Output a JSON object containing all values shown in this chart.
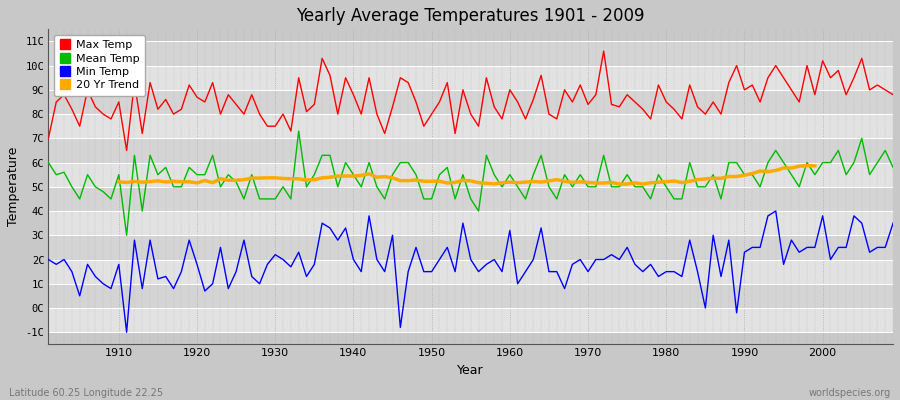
{
  "title": "Yearly Average Temperatures 1901 - 2009",
  "xlabel": "Year",
  "ylabel": "Temperature",
  "subtitle_left": "Latitude 60.25 Longitude 22.25",
  "subtitle_right": "worldspecies.org",
  "ylim": [
    -1.5,
    11.5
  ],
  "yticks": [
    -1,
    0,
    1,
    2,
    3,
    4,
    5,
    6,
    7,
    8,
    9,
    10,
    11
  ],
  "ytick_labels": [
    "-1C",
    "0C",
    "1C",
    "2C",
    "3C",
    "4C",
    "5C",
    "6C",
    "7C",
    "8C",
    "9C",
    "10C",
    "11C"
  ],
  "xlim": [
    1901,
    2009
  ],
  "start_year": 1901,
  "end_year": 2009,
  "colors": {
    "max": "#ff0000",
    "mean": "#00bb00",
    "min": "#0000ff",
    "trend": "#ffaa00",
    "fig_bg": "#d0d0d0",
    "plot_bg_dark": "#c8c8c8",
    "plot_bg_light": "#e0e0e0",
    "grid_v": "#aaaaaa",
    "grid_h": "#ffffff"
  },
  "legend_labels": [
    "Max Temp",
    "Mean Temp",
    "Min Temp",
    "20 Yr Trend"
  ],
  "max_temp": [
    7.0,
    8.5,
    8.8,
    8.2,
    7.5,
    9.0,
    8.3,
    8.0,
    7.8,
    8.5,
    6.5,
    9.3,
    7.2,
    9.3,
    8.2,
    8.6,
    8.0,
    8.2,
    9.2,
    8.7,
    8.5,
    9.3,
    8.0,
    8.8,
    8.4,
    8.0,
    8.8,
    8.0,
    7.5,
    7.5,
    8.0,
    7.3,
    9.5,
    8.1,
    8.4,
    10.3,
    9.6,
    8.0,
    9.5,
    8.8,
    8.0,
    9.5,
    8.0,
    7.2,
    8.3,
    9.5,
    9.3,
    8.5,
    7.5,
    8.0,
    8.5,
    9.3,
    7.2,
    9.0,
    8.0,
    7.5,
    9.5,
    8.3,
    7.8,
    9.0,
    8.5,
    7.8,
    8.6,
    9.6,
    8.0,
    7.8,
    9.0,
    8.5,
    9.2,
    8.4,
    8.8,
    10.6,
    8.4,
    8.3,
    8.8,
    8.5,
    8.2,
    7.8,
    9.2,
    8.5,
    8.2,
    7.8,
    9.2,
    8.3,
    8.0,
    8.5,
    8.0,
    9.3,
    10.0,
    9.0,
    9.2,
    8.5,
    9.5,
    10.0,
    9.5,
    9.0,
    8.5,
    10.0,
    8.8,
    10.2,
    9.5,
    9.8,
    8.8,
    9.5,
    10.3,
    9.0,
    9.2,
    9.0,
    8.8
  ],
  "mean_temp": [
    6.0,
    5.5,
    5.6,
    5.0,
    4.5,
    5.5,
    5.0,
    4.8,
    4.5,
    5.5,
    3.0,
    6.3,
    4.0,
    6.3,
    5.5,
    5.8,
    5.0,
    5.0,
    5.8,
    5.5,
    5.5,
    6.3,
    5.0,
    5.5,
    5.2,
    4.5,
    5.5,
    4.5,
    4.5,
    4.5,
    5.0,
    4.5,
    7.3,
    5.0,
    5.5,
    6.3,
    6.3,
    5.0,
    6.0,
    5.5,
    5.0,
    6.0,
    5.0,
    4.5,
    5.5,
    6.0,
    6.0,
    5.5,
    4.5,
    4.5,
    5.5,
    5.8,
    4.5,
    5.5,
    4.5,
    4.0,
    6.3,
    5.5,
    5.0,
    5.5,
    5.0,
    4.5,
    5.5,
    6.3,
    5.0,
    4.5,
    5.5,
    5.0,
    5.5,
    5.0,
    5.0,
    6.3,
    5.0,
    5.0,
    5.5,
    5.0,
    5.0,
    4.5,
    5.5,
    5.0,
    4.5,
    4.5,
    6.0,
    5.0,
    5.0,
    5.5,
    4.5,
    6.0,
    6.0,
    5.5,
    5.5,
    5.0,
    6.0,
    6.5,
    6.0,
    5.5,
    5.0,
    6.0,
    5.5,
    6.0,
    6.0,
    6.5,
    5.5,
    6.0,
    7.0,
    5.5,
    6.0,
    6.5,
    5.8
  ],
  "min_temp": [
    2.0,
    1.8,
    2.0,
    1.5,
    0.5,
    1.8,
    1.3,
    1.0,
    0.8,
    1.8,
    -1.0,
    2.8,
    0.8,
    2.8,
    1.2,
    1.3,
    0.8,
    1.5,
    2.8,
    1.8,
    0.7,
    1.0,
    2.5,
    0.8,
    1.5,
    2.8,
    1.3,
    1.0,
    1.8,
    2.2,
    2.0,
    1.7,
    2.3,
    1.3,
    1.8,
    3.5,
    3.3,
    2.8,
    3.3,
    2.0,
    1.5,
    3.8,
    2.0,
    1.5,
    3.0,
    -0.8,
    1.5,
    2.5,
    1.5,
    1.5,
    2.0,
    2.5,
    1.5,
    3.5,
    2.0,
    1.5,
    1.8,
    2.0,
    1.5,
    3.2,
    1.0,
    1.5,
    2.0,
    3.3,
    1.5,
    1.5,
    0.8,
    1.8,
    2.0,
    1.5,
    2.0,
    2.0,
    2.2,
    2.0,
    2.5,
    1.8,
    1.5,
    1.8,
    1.3,
    1.5,
    1.5,
    1.3,
    2.8,
    1.5,
    0.0,
    3.0,
    1.3,
    2.8,
    -0.2,
    2.3,
    2.5,
    2.5,
    3.8,
    4.0,
    1.8,
    2.8,
    2.3,
    2.5,
    2.5,
    3.8,
    2.0,
    2.5,
    2.5,
    3.8,
    3.5,
    2.3,
    2.5,
    2.5,
    3.5
  ]
}
